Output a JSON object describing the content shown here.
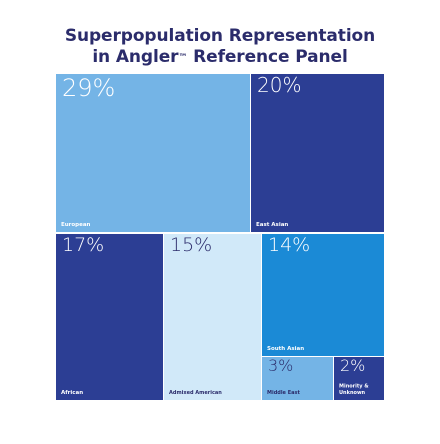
{
  "title": {
    "line1": "Superpopulation Representation",
    "line2_pre": "in Angler",
    "line2_mark": "™",
    "line2_post": " Reference Panel"
  },
  "chart_data": {
    "type": "treemap",
    "title": "Superpopulation Representation in Angler™ Reference Panel",
    "unit": "%",
    "items": [
      {
        "label": "European",
        "value": 29,
        "value_label": "29%",
        "color": "#74b4e6",
        "text_color": "#ffffff"
      },
      {
        "label": "East Asian",
        "value": 20,
        "value_label": "20%",
        "color": "#2c3e94",
        "text_color": "#ffffff"
      },
      {
        "label": "African",
        "value": 17,
        "value_label": "17%",
        "color": "#2c3e94",
        "text_color": "#ffffff"
      },
      {
        "label": "Admixed American",
        "value": 15,
        "value_label": "15%",
        "color": "#d1e9f9",
        "text_color": "#2b2c6b"
      },
      {
        "label": "South Asian",
        "value": 14,
        "value_label": "14%",
        "color": "#1b8ad6",
        "text_color": "#ffffff"
      },
      {
        "label": "Middle East",
        "value": 3,
        "value_label": "3%",
        "color": "#74b4e6",
        "text_color": "#2b2c6b"
      },
      {
        "label": "Minority & Unknown",
        "value": 2,
        "value_label": "2%",
        "color": "#2c3e94",
        "text_color": "#ffffff"
      }
    ]
  }
}
